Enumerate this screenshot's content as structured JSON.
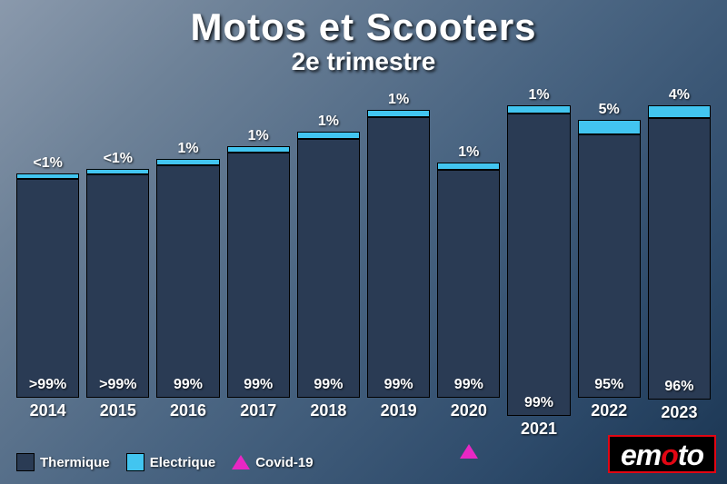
{
  "title": "Motos et Scooters",
  "subtitle": "2e trimestre",
  "chart": {
    "type": "stacked-bar",
    "background_gradient": [
      "#8a99ac",
      "#1a3552"
    ],
    "series_colors": {
      "thermique": "#2a3b54",
      "electrique": "#42c5f0",
      "covid": "#e927c4"
    },
    "max_total": 380,
    "bars": [
      {
        "year": "2014",
        "thermique_h": 250,
        "electrique_h": 6,
        "therm_label": ">99%",
        "elec_label": "<1%",
        "covid": false
      },
      {
        "year": "2015",
        "thermique_h": 255,
        "electrique_h": 6,
        "therm_label": ">99%",
        "elec_label": "<1%",
        "covid": false
      },
      {
        "year": "2016",
        "thermique_h": 265,
        "electrique_h": 7,
        "therm_label": "99%",
        "elec_label": "1%",
        "covid": false
      },
      {
        "year": "2017",
        "thermique_h": 280,
        "electrique_h": 7,
        "therm_label": "99%",
        "elec_label": "1%",
        "covid": false
      },
      {
        "year": "2018",
        "thermique_h": 295,
        "electrique_h": 8,
        "therm_label": "99%",
        "elec_label": "1%",
        "covid": false
      },
      {
        "year": "2019",
        "thermique_h": 320,
        "electrique_h": 8,
        "therm_label": "99%",
        "elec_label": "1%",
        "covid": false
      },
      {
        "year": "2020",
        "thermique_h": 260,
        "electrique_h": 8,
        "therm_label": "99%",
        "elec_label": "1%",
        "covid": true
      },
      {
        "year": "2021",
        "thermique_h": 345,
        "electrique_h": 9,
        "therm_label": "99%",
        "elec_label": "1%",
        "covid": false
      },
      {
        "year": "2022",
        "thermique_h": 300,
        "electrique_h": 17,
        "therm_label": "95%",
        "elec_label": "5%",
        "covid": false
      },
      {
        "year": "2023",
        "thermique_h": 320,
        "electrique_h": 15,
        "therm_label": "96%",
        "elec_label": "4%",
        "covid": false
      }
    ]
  },
  "legend": {
    "items": [
      {
        "key": "thermique",
        "label": "Thermique",
        "shape": "square",
        "color": "#2a3b54"
      },
      {
        "key": "electrique",
        "label": "Electrique",
        "shape": "square",
        "color": "#42c5f0"
      },
      {
        "key": "covid",
        "label": "Covid-19",
        "shape": "triangle",
        "color": "#e927c4"
      }
    ]
  },
  "logo": {
    "text_pre": "em",
    "text_o": "o",
    "text_post": "to",
    "bg": "#000000",
    "border": "#e20613",
    "accent": "#e20613"
  }
}
